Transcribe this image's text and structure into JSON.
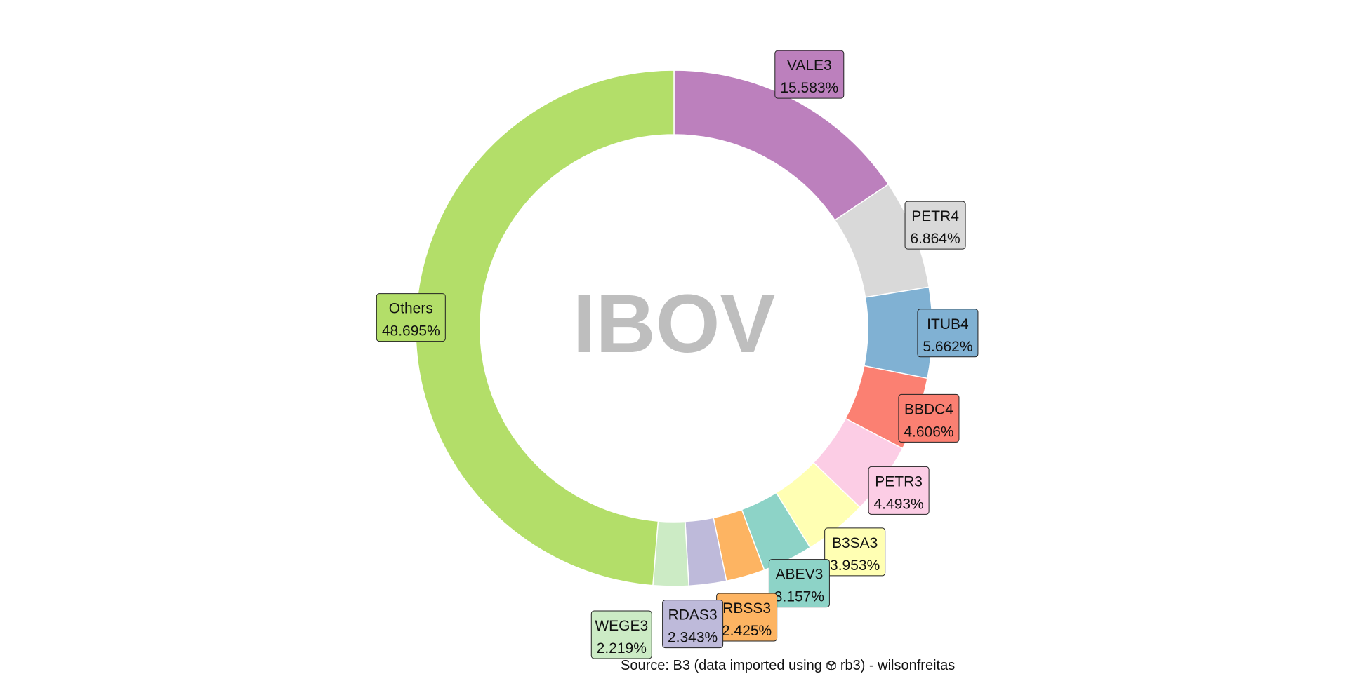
{
  "chart_data": {
    "type": "donut",
    "center_text": "IBOV",
    "slices": [
      {
        "label": "VALE3",
        "value": 15.583,
        "display": "15.583%",
        "color": "#BC80BD"
      },
      {
        "label": "PETR4",
        "value": 6.864,
        "display": "6.864%",
        "color": "#D9D9D9"
      },
      {
        "label": "ITUB4",
        "value": 5.662,
        "display": "5.662%",
        "color": "#80B1D3"
      },
      {
        "label": "BBDC4",
        "value": 4.606,
        "display": "4.606%",
        "color": "#FB8072"
      },
      {
        "label": "PETR3",
        "value": 4.493,
        "display": "4.493%",
        "color": "#FCCDE5"
      },
      {
        "label": "B3SA3",
        "value": 3.953,
        "display": "3.953%",
        "color": "#FFFFB3"
      },
      {
        "label": "ABEV3",
        "value": 3.157,
        "display": "3.157%",
        "color": "#8DD3C7"
      },
      {
        "label": "RBSS3",
        "value": 2.425,
        "display": "2.425%",
        "color": "#FDB462"
      },
      {
        "label": "RDAS3",
        "value": 2.343,
        "display": "2.343%",
        "color": "#BEBADA"
      },
      {
        "label": "WEGE3",
        "value": 2.219,
        "display": "2.219%",
        "color": "#CCEBC5"
      },
      {
        "label": "Others",
        "value": 48.695,
        "display": "48.695%",
        "color": "#B3DE69"
      }
    ],
    "caption": {
      "prefix": "Source: B3 (data imported using",
      "icon": "package-icon",
      "suffix": "rb3) - wilsonfreitas"
    }
  },
  "colors": {
    "center_text": "#BEBEBE"
  }
}
